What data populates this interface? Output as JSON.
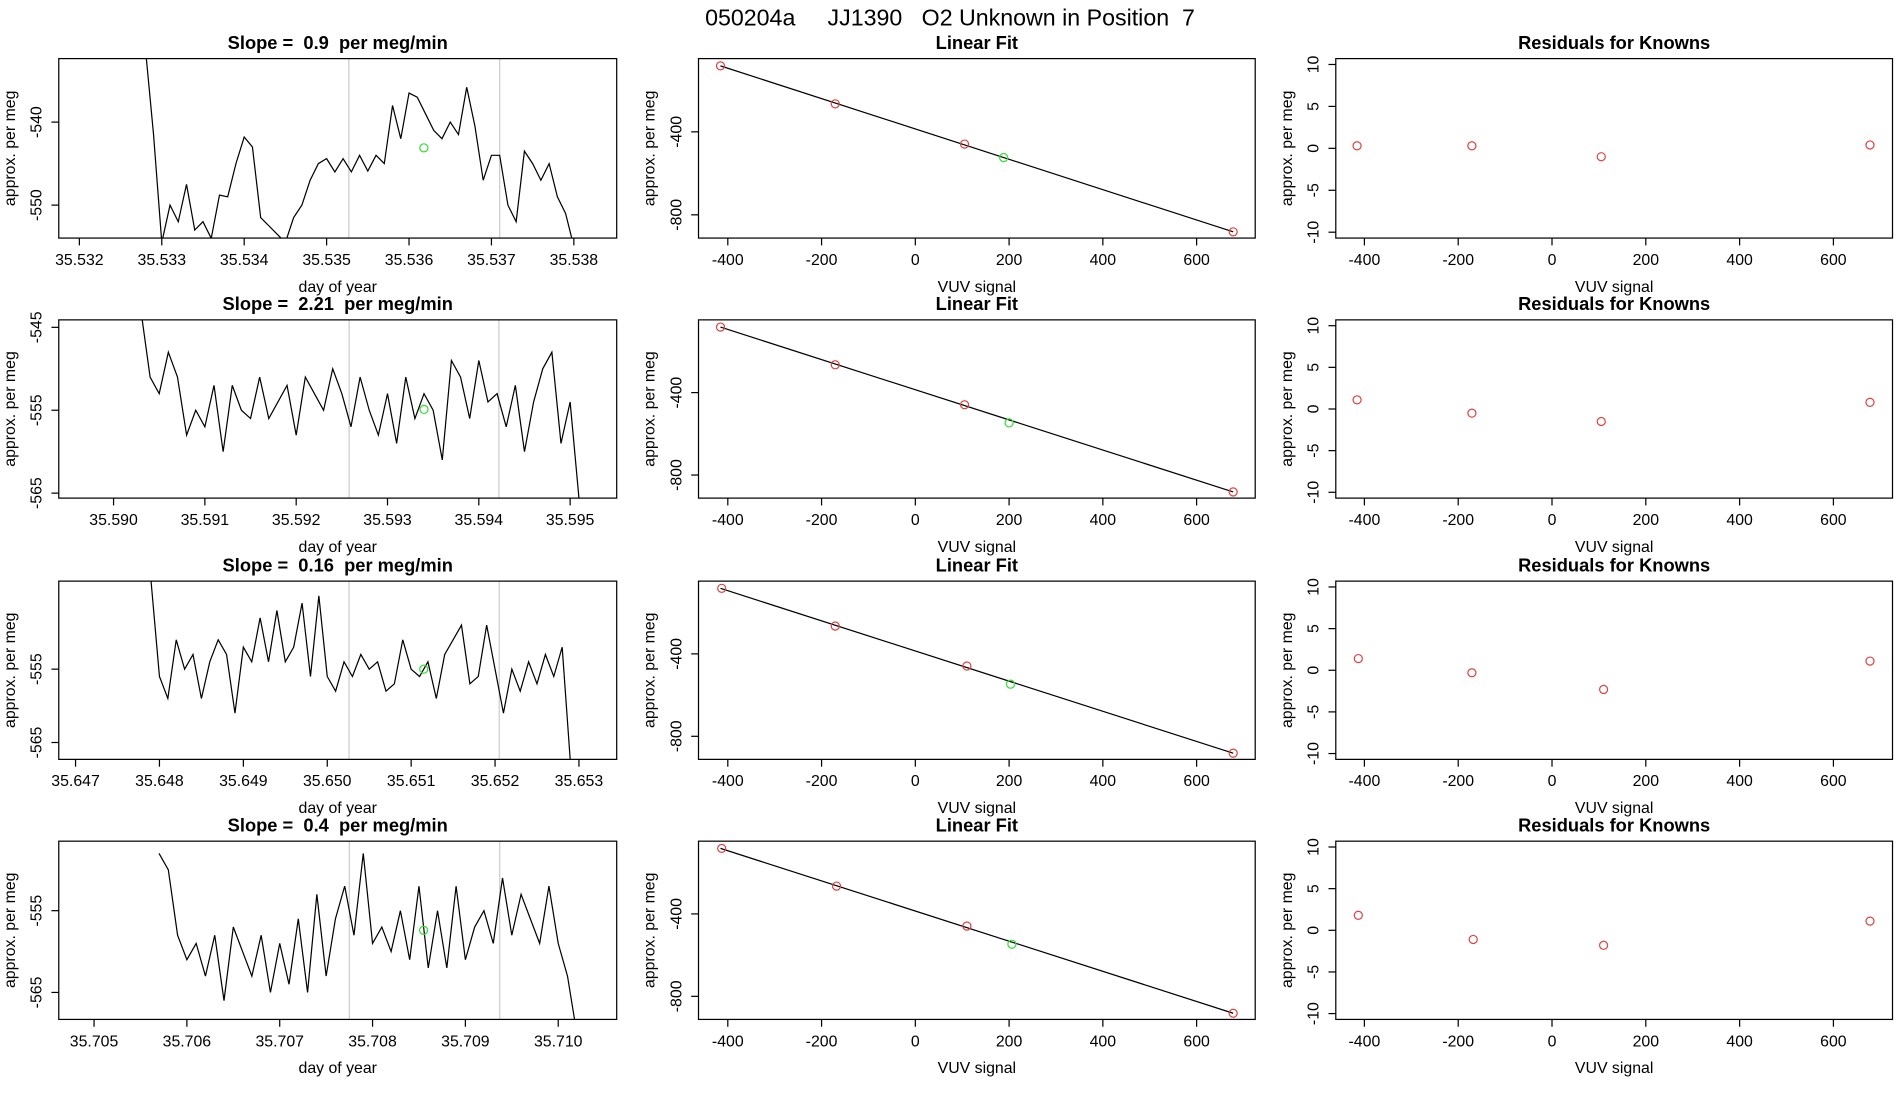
{
  "title": "050204a     JJ1390   O2 Unknown in Position  7",
  "chart_data": [
    {
      "type": "line",
      "title": "Slope =  0.9  per meg/min",
      "x_label": "day of year",
      "y_label": "approx. per meg",
      "xlim": [
        35.53175,
        35.53852
      ],
      "ylim": [
        -553.97,
        -532.35
      ],
      "xticks": [
        35.532,
        35.533,
        35.534,
        35.535,
        35.536,
        35.537,
        35.538
      ],
      "yticks": [
        -540,
        -550
      ],
      "vlines": {
        "color": "#cccccc",
        "x": [
          35.53527,
          35.5371
        ]
      },
      "series": [
        {
          "style": "line",
          "color": "#000000",
          "x": [
            35.5328,
            35.5329,
            35.533,
            35.5331,
            35.5332,
            35.5333,
            35.5334,
            35.5335,
            35.5336,
            35.5337,
            35.5338,
            35.5339,
            35.534,
            35.5341,
            35.5342,
            35.5343,
            35.5344,
            35.5345,
            35.5346,
            35.5347,
            35.5348,
            35.5349,
            35.535,
            35.5351,
            35.5352,
            35.5353,
            35.5354,
            35.5355,
            35.5356,
            35.5357,
            35.5358,
            35.5359,
            35.536,
            35.5361,
            35.5362,
            35.5363,
            35.5364,
            35.5365,
            35.5366,
            35.5367,
            35.5368,
            35.5369,
            35.537,
            35.5371,
            35.5372,
            35.5373,
            35.5374,
            35.5375,
            35.5376,
            35.5377,
            35.5378,
            35.5379,
            35.538
          ],
          "values": [
            -531,
            -541.5,
            -554.5,
            -550,
            -552,
            -547.5,
            -553,
            -552,
            -554,
            -548.8,
            -549,
            -545,
            -541.8,
            -543,
            -551.5,
            -552.5,
            -553.5,
            -554.5,
            -551.5,
            -550,
            -547,
            -545,
            -544.4,
            -546,
            -544.4,
            -546,
            -544,
            -545.9,
            -544,
            -545,
            -538,
            -542,
            -536.5,
            -537,
            -539,
            -541,
            -542,
            -540,
            -541.5,
            -535.8,
            -540.5,
            -547,
            -544,
            -544,
            -550,
            -552,
            -543.5,
            -545,
            -547,
            -545,
            -549,
            -551,
            -555
          ]
        },
        {
          "style": "points",
          "color": "#33dd33",
          "x": [
            35.53618
          ],
          "values": [
            -543.1
          ]
        }
      ]
    },
    {
      "type": "scatter",
      "title": "Linear Fit",
      "x_label": "VUV signal",
      "y_label": "approx. per meg",
      "xlim": [
        -462.5,
        725
      ],
      "ylim": [
        -912,
        -47
      ],
      "xticks": [
        -400,
        -200,
        0,
        200,
        400,
        600
      ],
      "yticks": [
        -400,
        -800
      ],
      "series": [
        {
          "style": "line",
          "color": "#000000",
          "x": [
            -415.6,
            678
          ],
          "values": [
            -82,
            -882
          ]
        },
        {
          "style": "points",
          "color": "#dd4444",
          "x": [
            -415.6,
            -170.8,
            105,
            678
          ],
          "values": [
            -82,
            -265,
            -459,
            -882
          ]
        },
        {
          "style": "points",
          "color": "#33dd33",
          "x": [
            188.5
          ],
          "values": [
            -524
          ]
        }
      ]
    },
    {
      "type": "scatter",
      "title": "Residuals for Knowns",
      "x_label": "VUV signal",
      "y_label": "approx. per meg",
      "xlim": [
        -461,
        726
      ],
      "ylim": [
        -10.7,
        10.7
      ],
      "xticks": [
        -400,
        -200,
        0,
        200,
        400,
        600
      ],
      "yticks": [
        10,
        5,
        0,
        -5,
        -10
      ],
      "series": [
        {
          "style": "points",
          "color": "#dd4444",
          "x": [
            -415.6,
            -170.8,
            105,
            678
          ],
          "values": [
            0.3,
            0.3,
            -1.0,
            0.4
          ]
        }
      ]
    },
    {
      "type": "line",
      "title": "Slope =  2.21  per meg/min",
      "x_label": "day of year",
      "y_label": "approx. per meg",
      "xlim": [
        35.5894,
        35.59551
      ],
      "ylim": [
        -565.6,
        -544.1
      ],
      "xticks": [
        {
          "value": 35.59,
          "label": "35.590"
        },
        35.591,
        35.592,
        35.593,
        35.594,
        35.595
      ],
      "yticks": [
        -545,
        -555,
        -565
      ],
      "vlines": {
        "color": "#cccccc",
        "x": [
          35.59258,
          35.59422
        ]
      },
      "series": [
        {
          "style": "line",
          "color": "#000000",
          "x": [
            35.5903,
            35.5904,
            35.5905,
            35.5906,
            35.5907,
            35.5908,
            35.5909,
            35.591,
            35.5911,
            35.5912,
            35.5913,
            35.5914,
            35.5915,
            35.5916,
            35.5917,
            35.5918,
            35.5919,
            35.592,
            35.5921,
            35.5922,
            35.5923,
            35.5924,
            35.5925,
            35.5926,
            35.5927,
            35.5928,
            35.5929,
            35.593,
            35.5931,
            35.5932,
            35.5933,
            35.5934,
            35.5935,
            35.5936,
            35.5937,
            35.5938,
            35.5939,
            35.594,
            35.5941,
            35.5942,
            35.5943,
            35.5944,
            35.5945,
            35.5946,
            35.5947,
            35.5948,
            35.5949,
            35.595,
            35.5951
          ],
          "values": [
            -543,
            -551,
            -553,
            -548,
            -551,
            -558,
            -555,
            -557,
            -552,
            -560,
            -552,
            -555,
            -556,
            -551,
            -556,
            -554,
            -552,
            -558,
            -551,
            -553,
            -555,
            -550,
            -553,
            -557,
            -551,
            -555,
            -558,
            -553,
            -559,
            -551,
            -556,
            -553,
            -555,
            -561,
            -549,
            -551,
            -556,
            -549,
            -554,
            -553,
            -557,
            -552,
            -560,
            -554,
            -550,
            -548,
            -559,
            -554,
            -566
          ]
        },
        {
          "style": "points",
          "color": "#33dd33",
          "x": [
            35.5934
          ],
          "values": [
            -554.9
          ]
        }
      ]
    },
    {
      "type": "scatter",
      "title": "Linear Fit",
      "x_label": "VUV signal",
      "y_label": "approx. per meg",
      "xlim": [
        -462.5,
        725
      ],
      "ylim": [
        -912,
        -47
      ],
      "xticks": [
        -400,
        -200,
        0,
        200,
        400,
        600
      ],
      "yticks": [
        -400,
        -800
      ],
      "series": [
        {
          "style": "line",
          "color": "#000000",
          "x": [
            -415.6,
            678
          ],
          "values": [
            -82,
            -882
          ]
        },
        {
          "style": "points",
          "color": "#dd4444",
          "x": [
            -415.6,
            -170.8,
            105,
            678
          ],
          "values": [
            -82,
            -265,
            -459,
            -882
          ]
        },
        {
          "style": "points",
          "color": "#33dd33",
          "x": [
            200
          ],
          "values": [
            -547
          ]
        }
      ]
    },
    {
      "type": "scatter",
      "title": "Residuals for Knowns",
      "x_label": "VUV signal",
      "y_label": "approx. per meg",
      "xlim": [
        -461,
        726
      ],
      "ylim": [
        -10.7,
        10.7
      ],
      "xticks": [
        -400,
        -200,
        0,
        200,
        400,
        600
      ],
      "yticks": [
        10,
        5,
        0,
        -5,
        -10
      ],
      "series": [
        {
          "style": "points",
          "color": "#dd4444",
          "x": [
            -415.6,
            -170.8,
            105,
            678
          ],
          "values": [
            1.1,
            -0.5,
            -1.5,
            0.8
          ]
        }
      ]
    },
    {
      "type": "line",
      "title": "Slope =  0.16  per meg/min",
      "x_label": "day of year",
      "y_label": "approx. per meg",
      "xlim": [
        35.6468,
        35.65345
      ],
      "ylim": [
        -567.3,
        -543
      ],
      "xticks": [
        35.647,
        35.648,
        35.649,
        {
          "value": 35.65,
          "label": "35.650"
        },
        35.651,
        35.652,
        35.653
      ],
      "yticks": [
        -555,
        -565
      ],
      "vlines": {
        "color": "#cccccc",
        "x": [
          35.65026,
          35.65205
        ]
      },
      "series": [
        {
          "style": "line",
          "color": "#000000",
          "x": [
            35.6479,
            35.648,
            35.6481,
            35.6482,
            35.6483,
            35.6484,
            35.6485,
            35.6486,
            35.6487,
            35.6488,
            35.6489,
            35.649,
            35.6491,
            35.6492,
            35.6493,
            35.6494,
            35.6495,
            35.6496,
            35.6497,
            35.6498,
            35.6499,
            35.65,
            35.6501,
            35.6502,
            35.6503,
            35.6504,
            35.6505,
            35.6506,
            35.6507,
            35.6508,
            35.6509,
            35.651,
            35.6511,
            35.6512,
            35.6513,
            35.6514,
            35.6515,
            35.6516,
            35.6517,
            35.6518,
            35.6519,
            35.652,
            35.6521,
            35.6522,
            35.6523,
            35.6524,
            35.6525,
            35.6526,
            35.6527,
            35.6528,
            35.6529
          ],
          "values": [
            -543,
            -556,
            -559,
            -551,
            -555,
            -553,
            -559,
            -554,
            -551,
            -553,
            -561,
            -552,
            -554,
            -548,
            -554,
            -547,
            -554,
            -552,
            -546,
            -556,
            -545,
            -556,
            -558,
            -554,
            -556,
            -553,
            -555,
            -554,
            -558,
            -557,
            -551,
            -555,
            -556,
            -554,
            -559,
            -553,
            -551,
            -549,
            -557,
            -556,
            -549,
            -555,
            -561,
            -555,
            -558,
            -554,
            -557,
            -553,
            -556,
            -552,
            -568
          ]
        },
        {
          "style": "points",
          "color": "#33dd33",
          "x": [
            35.65115
          ],
          "values": [
            -555
          ]
        }
      ]
    },
    {
      "type": "scatter",
      "title": "Linear Fit",
      "x_label": "VUV signal",
      "y_label": "approx. per meg",
      "xlim": [
        -462.5,
        725
      ],
      "ylim": [
        -912,
        -47
      ],
      "xticks": [
        -400,
        -200,
        0,
        200,
        400,
        600
      ],
      "yticks": [
        -400,
        -800
      ],
      "series": [
        {
          "style": "line",
          "color": "#000000",
          "x": [
            -415.6,
            678
          ],
          "values": [
            -82,
            -882
          ]
        },
        {
          "style": "points",
          "color": "#dd4444",
          "x": [
            -413,
            -170.8,
            110,
            678
          ],
          "values": [
            -82,
            -265,
            -459,
            -882
          ]
        },
        {
          "style": "points",
          "color": "#33dd33",
          "x": [
            203
          ],
          "values": [
            -547
          ]
        }
      ]
    },
    {
      "type": "scatter",
      "title": "Residuals for Knowns",
      "x_label": "VUV signal",
      "y_label": "approx. per meg",
      "xlim": [
        -461,
        726
      ],
      "ylim": [
        -10.7,
        10.7
      ],
      "xticks": [
        -400,
        -200,
        0,
        200,
        400,
        600
      ],
      "yticks": [
        10,
        5,
        0,
        -5,
        -10
      ],
      "series": [
        {
          "style": "points",
          "color": "#dd4444",
          "x": [
            -413,
            -170.8,
            110,
            678
          ],
          "values": [
            1.4,
            -0.3,
            -2.3,
            1.1
          ]
        }
      ]
    },
    {
      "type": "line",
      "title": "Slope =  0.4  per meg/min",
      "x_label": "day of year",
      "y_label": "approx. per meg",
      "xlim": [
        35.70462,
        35.71063
      ],
      "ylim": [
        -568.3,
        -546.5
      ],
      "xticks": [
        35.705,
        35.706,
        35.707,
        35.708,
        35.709,
        {
          "value": 35.71,
          "label": "35.710"
        }
      ],
      "yticks": [
        -555,
        -565
      ],
      "vlines": {
        "color": "#cccccc",
        "x": [
          35.70775,
          35.70937
        ]
      },
      "series": [
        {
          "style": "line",
          "color": "#000000",
          "x": [
            35.7057,
            35.7058,
            35.7059,
            35.706,
            35.7061,
            35.7062,
            35.7063,
            35.7064,
            35.7065,
            35.7066,
            35.7067,
            35.7068,
            35.7069,
            35.707,
            35.7071,
            35.7072,
            35.7073,
            35.7074,
            35.7075,
            35.7076,
            35.7077,
            35.7078,
            35.7079,
            35.708,
            35.7081,
            35.7082,
            35.7083,
            35.7084,
            35.7085,
            35.7086,
            35.7087,
            35.7088,
            35.7089,
            35.709,
            35.7091,
            35.7092,
            35.7093,
            35.7094,
            35.7095,
            35.7096,
            35.7097,
            35.7098,
            35.7099,
            35.71,
            35.7101,
            35.7102
          ],
          "values": [
            -548,
            -550,
            -558,
            -561,
            -559,
            -563,
            -558,
            -566,
            -557,
            -560,
            -563,
            -558,
            -565,
            -559,
            -564,
            -556,
            -565,
            -553,
            -563,
            -556,
            -552,
            -558,
            -548,
            -559,
            -557,
            -560,
            -555,
            -561,
            -552,
            -562,
            -555,
            -562,
            -552,
            -561,
            -557,
            -555,
            -559,
            -551,
            -558,
            -553,
            -556,
            -559,
            -552,
            -559,
            -563,
            -570
          ]
        },
        {
          "style": "points",
          "color": "#33dd33",
          "x": [
            35.70855
          ],
          "values": [
            -557.4
          ]
        }
      ]
    },
    {
      "type": "scatter",
      "title": "Linear Fit",
      "x_label": "VUV signal",
      "y_label": "approx. per meg",
      "xlim": [
        -462.5,
        725
      ],
      "ylim": [
        -912,
        -47
      ],
      "xticks": [
        -400,
        -200,
        0,
        200,
        400,
        600
      ],
      "yticks": [
        -400,
        -800
      ],
      "series": [
        {
          "style": "line",
          "color": "#000000",
          "x": [
            -415.6,
            678
          ],
          "values": [
            -82,
            -882
          ]
        },
        {
          "style": "points",
          "color": "#dd4444",
          "x": [
            -413,
            -168,
            110,
            678
          ],
          "values": [
            -82,
            -265,
            -459,
            -882
          ]
        },
        {
          "style": "points",
          "color": "#33dd33",
          "x": [
            206
          ],
          "values": [
            -547
          ]
        }
      ]
    },
    {
      "type": "scatter",
      "title": "Residuals for Knowns",
      "x_label": "VUV signal",
      "y_label": "approx. per meg",
      "xlim": [
        -461,
        726
      ],
      "ylim": [
        -10.7,
        10.7
      ],
      "xticks": [
        -400,
        -200,
        0,
        200,
        400,
        600
      ],
      "yticks": [
        10,
        5,
        0,
        -5,
        -10
      ],
      "series": [
        {
          "style": "points",
          "color": "#dd4444",
          "x": [
            -413,
            -168,
            110,
            678
          ],
          "values": [
            1.8,
            -1.1,
            -1.8,
            1.1
          ]
        }
      ]
    }
  ]
}
